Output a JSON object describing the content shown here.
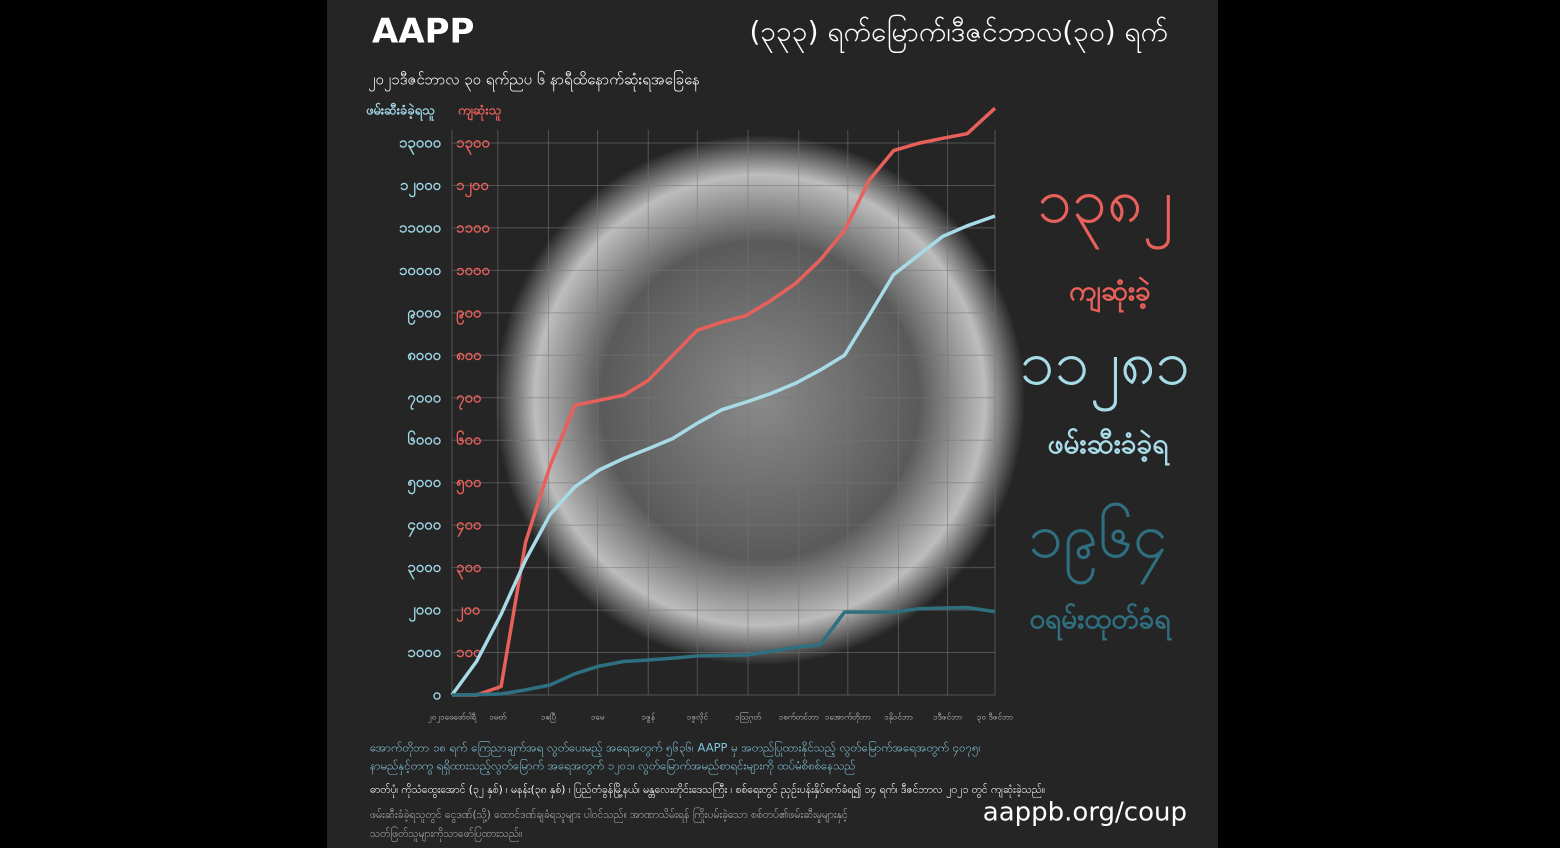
{
  "chart_data": {
    "type": "line",
    "logo": "AAPP",
    "title": "(၃၃၃) ရက်မြောက်၊ဒီဇင်ဘာလ(၃၀) ရက်",
    "subtitle": "၂၀၂၁ဒီဇင်ဘာလ ၃၀ ရက်ညပ ၆ နာရီထိနောက်ဆုံးရအခြေနေ",
    "ylabel": "ဖမ်းဆီးခံခဲ့ရသူ",
    "y2label": "ကျဆုံးသူ",
    "x": [
      0,
      15,
      30,
      45,
      60,
      75,
      90,
      105,
      120,
      135,
      150,
      165,
      180,
      195,
      210,
      225,
      240,
      255,
      270,
      285,
      300,
      315,
      332
    ],
    "xlim": [
      0,
      332
    ],
    "xticks": [
      {
        "value": 0,
        "label": "၂၀၂၁ဖေဖော်ဝါရီ"
      },
      {
        "value": 28,
        "label": "၁မတ်"
      },
      {
        "value": 59,
        "label": "၁ဧပြီ"
      },
      {
        "value": 89,
        "label": "၁မေ"
      },
      {
        "value": 120,
        "label": "၁ဇွန်"
      },
      {
        "value": 150,
        "label": "၁ဇူလိုင်"
      },
      {
        "value": 181,
        "label": "၁ဩဂုတ်"
      },
      {
        "value": 212,
        "label": "၁စက်တင်ဘာ"
      },
      {
        "value": 242,
        "label": "၁အောက်တိုဘာ"
      },
      {
        "value": 273,
        "label": "၁နိုဝင်ဘာ"
      },
      {
        "value": 303,
        "label": "၁ဒီဇင်ဘာ"
      },
      {
        "value": 332,
        "label": "၃၀ ဒီဇင်ဘာ"
      }
    ],
    "ylim": [
      0,
      13000
    ],
    "yticks": [
      {
        "value": 0,
        "label": "၀"
      },
      {
        "value": 1000,
        "label": "၁၀၀၀"
      },
      {
        "value": 2000,
        "label": "၂၀၀၀"
      },
      {
        "value": 3000,
        "label": "၃၀၀၀"
      },
      {
        "value": 4000,
        "label": "၄၀၀၀"
      },
      {
        "value": 5000,
        "label": "၅၀၀၀"
      },
      {
        "value": 6000,
        "label": "၆၀၀၀"
      },
      {
        "value": 7000,
        "label": "၇၀၀၀"
      },
      {
        "value": 8000,
        "label": "၈၀၀၀"
      },
      {
        "value": 9000,
        "label": "၉၀၀၀"
      },
      {
        "value": 10000,
        "label": "၁၀၀၀၀"
      },
      {
        "value": 11000,
        "label": "၁၁၀၀၀"
      },
      {
        "value": 12000,
        "label": "၁၂၀၀၀"
      },
      {
        "value": 13000,
        "label": "၁၃၀၀၀"
      }
    ],
    "y2lim": [
      0,
      1300
    ],
    "y2ticks": [
      {
        "value": 100,
        "label": "၁၀၀"
      },
      {
        "value": 200,
        "label": "၂၀၀"
      },
      {
        "value": 300,
        "label": "၃၀၀"
      },
      {
        "value": 400,
        "label": "၄၀၀"
      },
      {
        "value": 500,
        "label": "၅၀၀"
      },
      {
        "value": 600,
        "label": "၆၀၀"
      },
      {
        "value": 700,
        "label": "၇၀၀"
      },
      {
        "value": 800,
        "label": "၈၀၀"
      },
      {
        "value": 900,
        "label": "၉၀၀"
      },
      {
        "value": 1000,
        "label": "၁၀၀၀"
      },
      {
        "value": 1100,
        "label": "၁၁၀၀"
      },
      {
        "value": 1200,
        "label": "၁၂၀၀"
      },
      {
        "value": 1300,
        "label": "၁၃၀၀"
      }
    ],
    "grid": true,
    "series": [
      {
        "color": "#e8605a",
        "axis": "y2",
        "values": [
          0,
          0,
          20,
          360,
          540,
          682,
          694,
          706,
          741,
          800,
          859,
          878,
          894,
          929,
          969,
          1024,
          1094,
          1212,
          1282,
          1299,
          1311,
          1322,
          1382
        ]
      },
      {
        "color": "#a8dbe8",
        "values": [
          0,
          790,
          1900,
          3180,
          4250,
          4900,
          5300,
          5570,
          5800,
          6040,
          6400,
          6720,
          6900,
          7100,
          7340,
          7650,
          8000,
          8940,
          9900,
          10350,
          10800,
          11050,
          11281
        ]
      },
      {
        "color": "#2e6f80",
        "values": [
          0,
          10,
          24,
          120,
          235,
          500,
          680,
          790,
          824,
          870,
          918,
          930,
          941,
          1030,
          1120,
          1180,
          1953,
          1953,
          1953,
          2030,
          2050,
          2060,
          1964
        ]
      }
    ],
    "highlights": [
      {
        "number": "၁၃၈၂",
        "label": "ကျဆုံးခဲ့"
      },
      {
        "number": "၁၁၂၈၁",
        "label": "ဖမ်းဆီးခံခဲ့ရ"
      },
      {
        "number": "၁၉၆၄",
        "label": "ဝရမ်းထုတ်ခံရ"
      }
    ],
    "notes": [
      "အောက်တိုဘာ ၁၈ ရက် ကြေညာချက်အရ လွတ်ပေးမည့် အရေအတွက် ၅၆၃၆၊ AAPP မှ အတည်ပြုထားနိုင်သည့် လွတ်မြောက်အရေအတွက် ၄၀၇၅၊",
      "နာမည်နှင့်တကွ ရရှိထားသည့်လွတ်မြောက် အရေအတွက် ၁၂၀၁၊ လွတ်မြောက်အမည်စာရင်းများကို ထပ်မံစိစစ်နေသည်",
      "ဓာတ်ပုံ၊ ကိုသံထွေးအောင် (၃၂ နှစ်) ၊ မနန်း(၃၈ နှစ်) ၊ ပြည်တံခွန်မြို့နယ်၊ မန္တလေးတိုင်းဒေသကြီး ၊ စစ်ရေးတွင် ညှဉ်းပန်းနှိပ်စက်ခံရ၍ ၁၄ ရက်၊ ဒီဇင်ဘာလ ၂၀၂၁ တွင် ကျဆုံးခဲ့သည်။",
      "ဖမ်းဆီးခံခဲ့ရသူတွင် ငွေဒဏ်(သို့) ထောင်ဒဏ်ချခံရသူများ ပါဝင်သည်။ အာဏာသိမ်းရန် ကြိုးပမ်းခဲ့သော စစ်တပ်၏ဖမ်းဆီးမှုများနှင့်",
      "သတ်ဖြတ်သူများကိုသာဖော်ပြထားသည်။"
    ],
    "source_url": "aappb.org/coup"
  }
}
